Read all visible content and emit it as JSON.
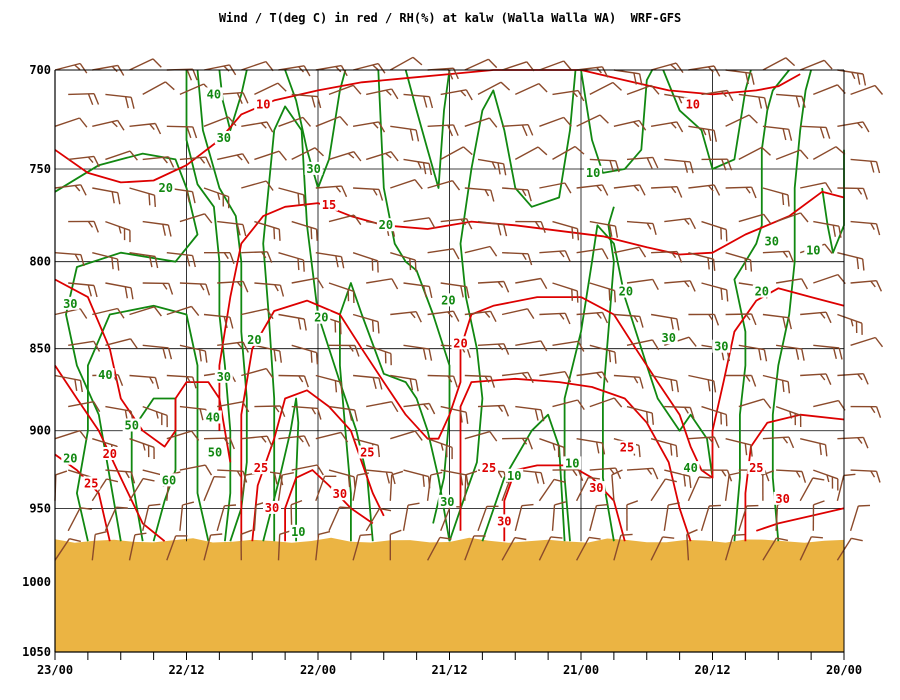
{
  "chart_data": {
    "type": "line",
    "title": "Wind / T(deg C) in red / RH(%) at kalw (Walla Walla WA)  WRF-GFS",
    "x_ticks": [
      "23/00",
      "22/12",
      "22/00",
      "21/12",
      "21/00",
      "20/12",
      "20/00"
    ],
    "y_ticks": [
      "700",
      "750",
      "800",
      "850",
      "900",
      "950",
      "1000",
      "1050"
    ],
    "y_axis": {
      "scale": "log",
      "min": 700,
      "max": 1050,
      "inverted": true
    },
    "x_axis": {
      "min_hours": 0,
      "max_hours": 72,
      "minor_ticks_hours": 3
    },
    "grid": true,
    "surface_pressure_hpa": 972,
    "colors": {
      "temperature": "#dd0000",
      "rh": "#118811",
      "wind": "#8b4a2b",
      "ground": "#ebb443"
    },
    "temperature_labels": [
      {
        "text": "10",
        "x": 19,
        "p": 718
      },
      {
        "text": "15",
        "x": 25,
        "p": 770
      },
      {
        "text": "20",
        "x": 37,
        "p": 848
      },
      {
        "text": "25",
        "x": 28.5,
        "p": 915
      },
      {
        "text": "20",
        "x": 5,
        "p": 916
      },
      {
        "text": "25",
        "x": 3.3,
        "p": 935
      },
      {
        "text": "25",
        "x": 18.8,
        "p": 925
      },
      {
        "text": "30",
        "x": 19.8,
        "p": 951
      },
      {
        "text": "30",
        "x": 26,
        "p": 942
      },
      {
        "text": "25",
        "x": 39.6,
        "p": 925
      },
      {
        "text": "30",
        "x": 41,
        "p": 960
      },
      {
        "text": "30",
        "x": 49.4,
        "p": 938
      },
      {
        "text": "10",
        "x": 58.2,
        "p": 718
      },
      {
        "text": "25",
        "x": 52.2,
        "p": 912
      },
      {
        "text": "25",
        "x": 64,
        "p": 925
      },
      {
        "text": "30",
        "x": 66.4,
        "p": 945
      }
    ],
    "rh_labels": [
      {
        "text": "40",
        "x": 14.5,
        "p": 713
      },
      {
        "text": "30",
        "x": 15.4,
        "p": 735
      },
      {
        "text": "20",
        "x": 10.1,
        "p": 761
      },
      {
        "text": "30",
        "x": 23.6,
        "p": 751
      },
      {
        "text": "20",
        "x": 30.2,
        "p": 781
      },
      {
        "text": "30",
        "x": 1.4,
        "p": 825
      },
      {
        "text": "40",
        "x": 4.6,
        "p": 867
      },
      {
        "text": "50",
        "x": 7,
        "p": 898
      },
      {
        "text": "60",
        "x": 10.4,
        "p": 933
      },
      {
        "text": "20",
        "x": 1.4,
        "p": 919
      },
      {
        "text": "20",
        "x": 18.2,
        "p": 846
      },
      {
        "text": "30",
        "x": 15.4,
        "p": 868
      },
      {
        "text": "40",
        "x": 14.4,
        "p": 893
      },
      {
        "text": "50",
        "x": 14.6,
        "p": 915
      },
      {
        "text": "20",
        "x": 24.3,
        "p": 833
      },
      {
        "text": "10",
        "x": 22.2,
        "p": 967
      },
      {
        "text": "20",
        "x": 35.9,
        "p": 823
      },
      {
        "text": "30",
        "x": 35.8,
        "p": 947
      },
      {
        "text": "10",
        "x": 41.9,
        "p": 930
      },
      {
        "text": "10",
        "x": 47.2,
        "p": 922
      },
      {
        "text": "10",
        "x": 49.1,
        "p": 753
      },
      {
        "text": "20",
        "x": 52.1,
        "p": 818
      },
      {
        "text": "30",
        "x": 56,
        "p": 845
      },
      {
        "text": "30",
        "x": 60.8,
        "p": 850
      },
      {
        "text": "40",
        "x": 58,
        "p": 925
      },
      {
        "text": "20",
        "x": 64.5,
        "p": 818
      },
      {
        "text": "30",
        "x": 65.4,
        "p": 790
      },
      {
        "text": "10",
        "x": 69.2,
        "p": 795
      }
    ]
  }
}
